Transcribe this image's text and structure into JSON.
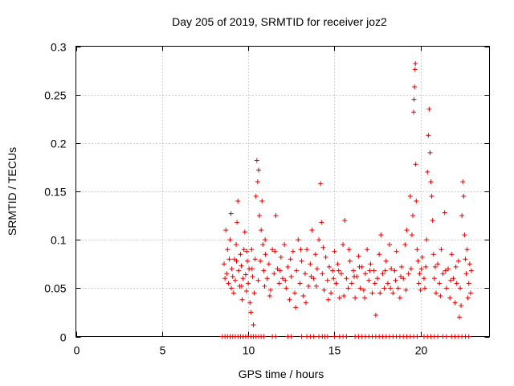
{
  "chart_data": {
    "type": "scatter",
    "title": "Day 205 of 2019, SRMTID for receiver joz2",
    "xlabel": "GPS time / hours",
    "ylabel": "SRMTID / TECUs",
    "xlim": [
      0,
      24
    ],
    "ylim": [
      0,
      0.3
    ],
    "xticks": [
      "0",
      "5",
      "10",
      "15",
      "20"
    ],
    "xtick_values": [
      0,
      5,
      10,
      15,
      20
    ],
    "yticks": [
      "0",
      "0.05",
      "0.1",
      "0.15",
      "0.2",
      "0.25",
      "0.3"
    ],
    "ytick_values": [
      0,
      0.05,
      0.1,
      0.15,
      0.2,
      0.25,
      0.3
    ],
    "grid": true,
    "marker": "plus",
    "color": "#e00000",
    "series": [
      {
        "values": [
          [
            8.6,
            0.075
          ],
          [
            8.7,
            0.11
          ],
          [
            8.75,
            0.065
          ],
          [
            8.8,
            0.09
          ],
          [
            8.85,
            0.055
          ],
          [
            8.9,
            0.08
          ],
          [
            8.95,
            0.1
          ],
          [
            9.0,
            0.127
          ],
          [
            9.05,
            0.07
          ],
          [
            9.1,
            0.062
          ],
          [
            9.15,
            0.045
          ],
          [
            9.2,
            0.08
          ],
          [
            9.25,
            0.058
          ],
          [
            9.3,
            0.095
          ],
          [
            9.35,
            0.118
          ],
          [
            9.4,
            0.14
          ],
          [
            9.45,
            0.068
          ],
          [
            9.5,
            0.052
          ],
          [
            9.55,
            0.085
          ],
          [
            9.6,
            0.073
          ],
          [
            9.65,
            0.038
          ],
          [
            9.7,
            0.06
          ],
          [
            9.75,
            0.09
          ],
          [
            9.8,
            0.108
          ],
          [
            9.85,
            0.064
          ],
          [
            9.9,
            0.047
          ],
          [
            9.95,
            0.078
          ],
          [
            10.0,
            0.055
          ],
          [
            10.05,
            0.07
          ],
          [
            10.1,
            0.035
          ],
          [
            10.15,
            0.025
          ],
          [
            10.2,
            0.09
          ],
          [
            10.25,
            0.062
          ],
          [
            10.3,
            0.012
          ],
          [
            10.35,
            0.045
          ],
          [
            10.4,
            0.08
          ],
          [
            10.45,
            0.145
          ],
          [
            10.5,
            0.182
          ],
          [
            10.55,
            0.16
          ],
          [
            10.6,
            0.172
          ],
          [
            10.65,
            0.125
          ],
          [
            10.7,
            0.078
          ],
          [
            10.75,
            0.11
          ],
          [
            10.8,
            0.14
          ],
          [
            10.85,
            0.095
          ],
          [
            10.9,
            0.068
          ],
          [
            10.95,
            0.052
          ],
          [
            11.0,
            0.085
          ],
          [
            11.1,
            0.06
          ],
          [
            11.2,
            0.075
          ],
          [
            11.3,
            0.048
          ],
          [
            11.4,
            0.09
          ],
          [
            11.5,
            0.065
          ],
          [
            11.6,
            0.125
          ],
          [
            11.7,
            0.07
          ],
          [
            11.8,
            0.055
          ],
          [
            11.9,
            0.082
          ],
          [
            12.0,
            0.06
          ],
          [
            12.1,
            0.095
          ],
          [
            12.2,
            0.05
          ],
          [
            12.3,
            0.072
          ],
          [
            12.4,
            0.038
          ],
          [
            12.5,
            0.062
          ],
          [
            12.6,
            0.088
          ],
          [
            12.7,
            0.045
          ],
          [
            12.8,
            0.068
          ],
          [
            12.9,
            0.1
          ],
          [
            13.0,
            0.055
          ],
          [
            13.1,
            0.078
          ],
          [
            13.2,
            0.042
          ],
          [
            13.3,
            0.065
          ],
          [
            13.4,
            0.09
          ],
          [
            13.5,
            0.052
          ],
          [
            13.6,
            0.075
          ],
          [
            13.7,
            0.11
          ],
          [
            13.8,
            0.06
          ],
          [
            13.9,
            0.085
          ],
          [
            14.0,
            0.07
          ],
          [
            14.1,
            0.1
          ],
          [
            14.2,
            0.158
          ],
          [
            14.25,
            0.118
          ],
          [
            14.3,
            0.065
          ],
          [
            14.4,
            0.048
          ],
          [
            14.5,
            0.082
          ],
          [
            14.6,
            0.058
          ],
          [
            14.7,
            0.072
          ],
          [
            14.8,
            0.045
          ],
          [
            14.9,
            0.068
          ],
          [
            15.0,
            0.088
          ],
          [
            15.1,
            0.055
          ],
          [
            15.2,
            0.075
          ],
          [
            15.3,
            0.04
          ],
          [
            15.4,
            0.065
          ],
          [
            15.5,
            0.095
          ],
          [
            15.6,
            0.12
          ],
          [
            15.7,
            0.06
          ],
          [
            15.8,
            0.05
          ],
          [
            15.9,
            0.078
          ],
          [
            16.0,
            0.055
          ],
          [
            16.1,
            0.068
          ],
          [
            16.2,
            0.04
          ],
          [
            16.3,
            0.062
          ],
          [
            16.4,
            0.083
          ],
          [
            16.5,
            0.05
          ],
          [
            16.6,
            0.072
          ],
          [
            16.7,
            0.048
          ],
          [
            16.8,
            0.065
          ],
          [
            16.9,
            0.09
          ],
          [
            17.0,
            0.058
          ],
          [
            17.1,
            0.075
          ],
          [
            17.2,
            0.045
          ],
          [
            17.3,
            0.068
          ],
          [
            17.4,
            0.022
          ],
          [
            17.5,
            0.06
          ],
          [
            17.6,
            0.085
          ],
          [
            17.7,
            0.105
          ],
          [
            17.8,
            0.065
          ],
          [
            17.9,
            0.05
          ],
          [
            18.0,
            0.078
          ],
          [
            18.1,
            0.055
          ],
          [
            18.2,
            0.095
          ],
          [
            18.3,
            0.07
          ],
          [
            18.4,
            0.045
          ],
          [
            18.5,
            0.068
          ],
          [
            18.6,
            0.088
          ],
          [
            18.7,
            0.05
          ],
          [
            18.8,
            0.04
          ],
          [
            18.9,
            0.072
          ],
          [
            19.0,
            0.06
          ],
          [
            19.1,
            0.095
          ],
          [
            19.2,
            0.11
          ],
          [
            19.3,
            0.065
          ],
          [
            19.4,
            0.145
          ],
          [
            19.5,
            0.105
          ],
          [
            19.55,
            0.125
          ],
          [
            19.6,
            0.232
          ],
          [
            19.62,
            0.245
          ],
          [
            19.65,
            0.258
          ],
          [
            19.68,
            0.276
          ],
          [
            19.7,
            0.282
          ],
          [
            19.72,
            0.178
          ],
          [
            19.75,
            0.14
          ],
          [
            19.8,
            0.09
          ],
          [
            19.85,
            0.078
          ],
          [
            19.9,
            0.055
          ],
          [
            19.95,
            0.065
          ],
          [
            20.0,
            0.048
          ],
          [
            20.1,
            0.082
          ],
          [
            20.2,
            0.06
          ],
          [
            20.3,
            0.072
          ],
          [
            20.35,
            0.1
          ],
          [
            20.4,
            0.17
          ],
          [
            20.45,
            0.208
          ],
          [
            20.5,
            0.235
          ],
          [
            20.55,
            0.19
          ],
          [
            20.6,
            0.16
          ],
          [
            20.65,
            0.145
          ],
          [
            20.7,
            0.12
          ],
          [
            20.75,
            0.085
          ],
          [
            20.8,
            0.06
          ],
          [
            20.9,
            0.045
          ],
          [
            21.0,
            0.075
          ],
          [
            21.1,
            0.055
          ],
          [
            21.2,
            0.09
          ],
          [
            21.3,
            0.065
          ],
          [
            21.4,
            0.128
          ],
          [
            21.5,
            0.05
          ],
          [
            21.6,
            0.07
          ],
          [
            21.7,
            0.04
          ],
          [
            21.8,
            0.085
          ],
          [
            21.9,
            0.06
          ],
          [
            22.0,
            0.035
          ],
          [
            22.1,
            0.055
          ],
          [
            22.2,
            0.078
          ],
          [
            22.25,
            0.02
          ],
          [
            22.3,
            0.05
          ],
          [
            22.4,
            0.125
          ],
          [
            22.45,
            0.16
          ],
          [
            22.5,
            0.145
          ],
          [
            22.55,
            0.105
          ],
          [
            22.6,
            0.08
          ],
          [
            22.65,
            0.065
          ],
          [
            22.7,
            0.09
          ],
          [
            22.8,
            0.055
          ],
          [
            22.85,
            0.075
          ],
          [
            22.9,
            0.045
          ],
          [
            8.65,
            0.06
          ],
          [
            9.02,
            0.05
          ],
          [
            9.32,
            0.078
          ],
          [
            9.62,
            0.052
          ],
          [
            9.92,
            0.088
          ],
          [
            10.22,
            0.07
          ],
          [
            10.58,
            0.058
          ],
          [
            10.98,
            0.1
          ],
          [
            11.25,
            0.042
          ],
          [
            11.55,
            0.088
          ],
          [
            11.85,
            0.068
          ],
          [
            12.15,
            0.058
          ],
          [
            12.45,
            0.08
          ],
          [
            12.75,
            0.03
          ],
          [
            13.05,
            0.09
          ],
          [
            13.35,
            0.035
          ],
          [
            13.65,
            0.062
          ],
          [
            13.95,
            0.052
          ],
          [
            14.35,
            0.092
          ],
          [
            14.65,
            0.038
          ],
          [
            14.95,
            0.06
          ],
          [
            15.25,
            0.068
          ],
          [
            15.55,
            0.042
          ],
          [
            15.85,
            0.09
          ],
          [
            16.15,
            0.062
          ],
          [
            16.45,
            0.072
          ],
          [
            16.75,
            0.04
          ],
          [
            17.05,
            0.068
          ],
          [
            17.35,
            0.055
          ],
          [
            17.65,
            0.045
          ],
          [
            17.95,
            0.068
          ],
          [
            18.25,
            0.05
          ],
          [
            18.55,
            0.058
          ],
          [
            18.85,
            0.062
          ],
          [
            19.15,
            0.048
          ],
          [
            19.45,
            0.07
          ],
          [
            20.05,
            0.07
          ],
          [
            20.25,
            0.05
          ],
          [
            20.85,
            0.072
          ],
          [
            21.15,
            0.042
          ],
          [
            21.45,
            0.068
          ],
          [
            21.75,
            0.058
          ],
          [
            22.05,
            0.072
          ],
          [
            22.35,
            0.032
          ],
          [
            22.75,
            0.04
          ],
          [
            22.95,
            0.068
          ]
        ]
      }
    ],
    "baseline_markers_x": [
      8.5,
      8.65,
      8.8,
      8.95,
      9.1,
      9.25,
      9.4,
      9.55,
      9.7,
      9.85,
      10.0,
      10.15,
      10.3,
      10.45,
      10.6,
      10.75,
      10.9,
      11.4,
      11.6,
      12.3,
      12.5,
      13.1,
      13.4,
      13.6,
      13.8,
      14.1,
      14.3,
      14.45,
      14.6,
      15.0,
      15.3,
      15.5,
      15.7,
      16.2,
      16.4,
      16.6,
      16.8,
      17.0,
      17.2,
      17.4,
      17.6,
      17.8,
      18.0,
      18.2,
      18.4,
      18.6,
      18.8,
      19.0,
      19.2,
      19.4,
      19.6,
      19.8,
      20.2,
      20.4,
      20.6,
      20.8,
      21.0,
      21.3,
      21.5,
      21.8,
      22.0,
      22.2,
      22.4,
      22.6,
      22.8
    ]
  }
}
